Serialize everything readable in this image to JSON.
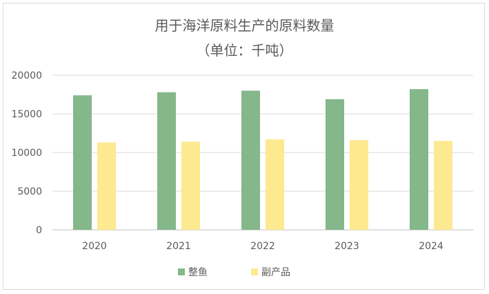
{
  "chart_data": {
    "type": "bar",
    "title": "用于海洋原料生产的原料数量",
    "subtitle": "（单位：千吨）",
    "categories": [
      "2020",
      "2021",
      "2022",
      "2023",
      "2024"
    ],
    "series": [
      {
        "name": "整鱼",
        "values": [
          17400,
          17800,
          18000,
          16900,
          18200
        ],
        "color": "#84b78a"
      },
      {
        "name": "副产品",
        "values": [
          11300,
          11400,
          11700,
          11600,
          11500
        ],
        "color": "#fde98f"
      }
    ],
    "yticks": [
      0,
      5000,
      10000,
      15000,
      20000
    ],
    "ylim": [
      0,
      20000
    ],
    "grid": true,
    "legend": "bottom"
  }
}
